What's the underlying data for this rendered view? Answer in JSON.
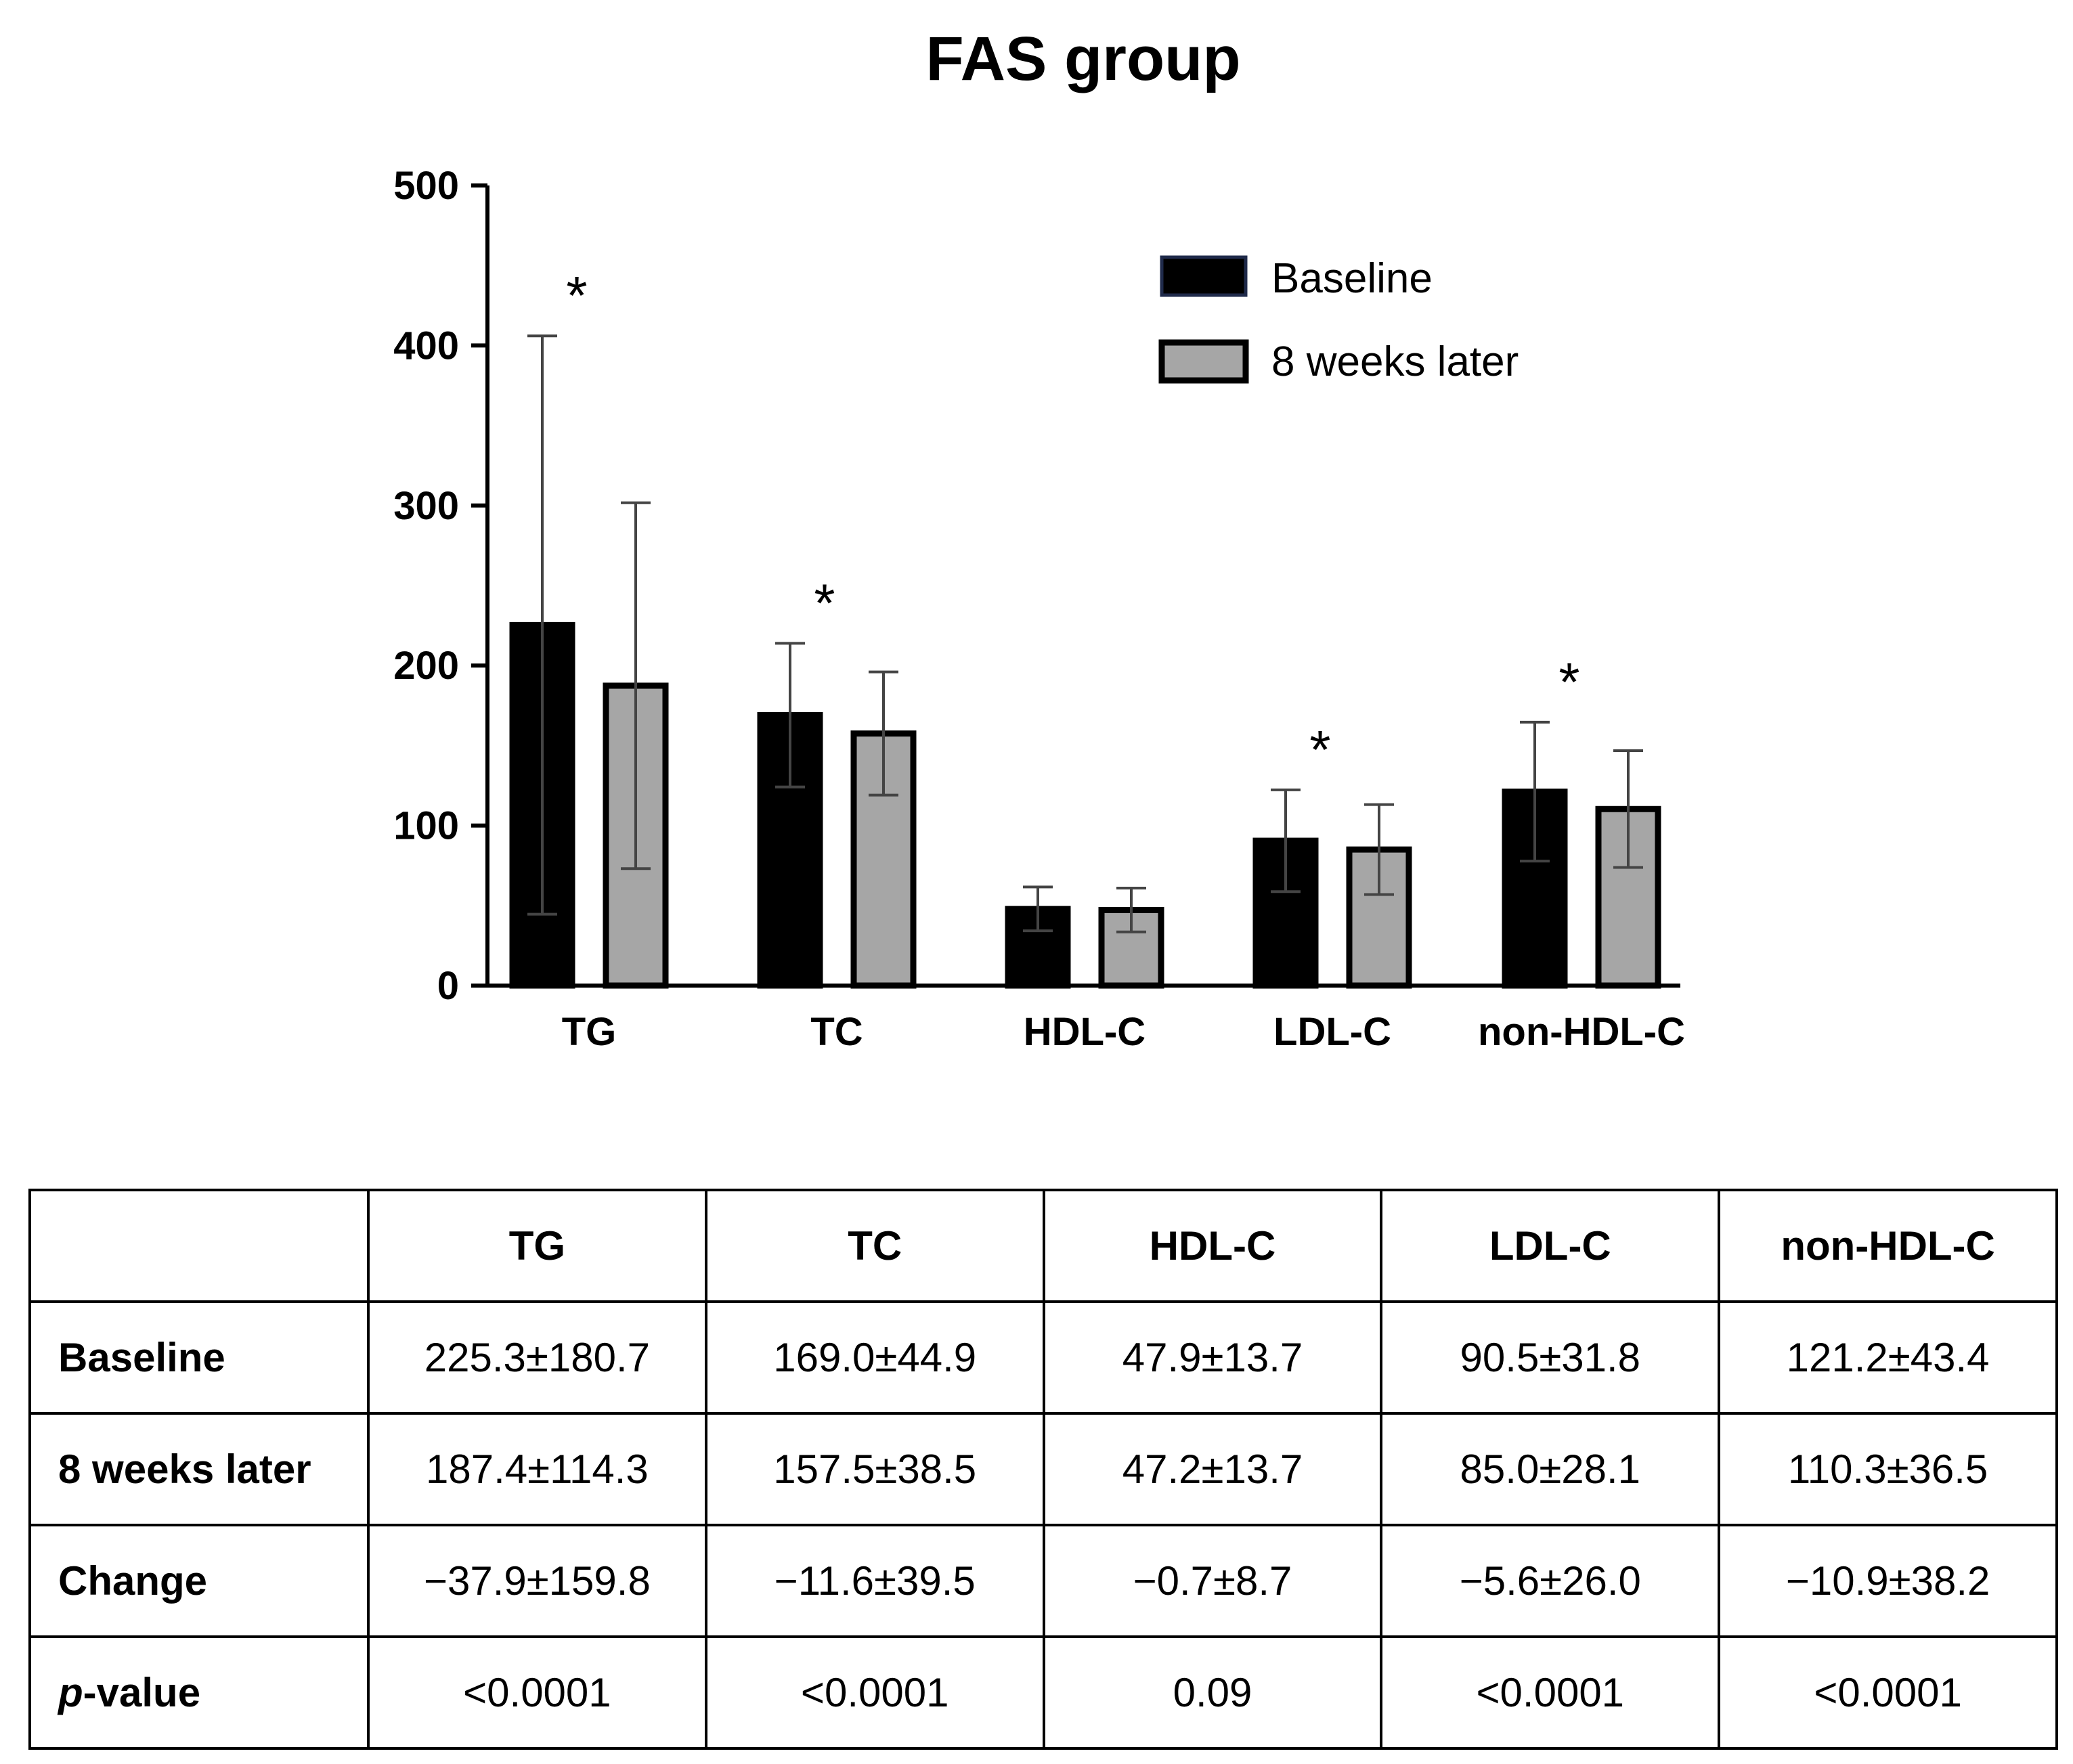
{
  "chart_data": {
    "type": "bar",
    "title": "FAS group",
    "categories": [
      "TG",
      "TC",
      "HDL-C",
      "LDL-C",
      "non-HDL-C"
    ],
    "series": [
      {
        "name": "Baseline",
        "color": "#000000",
        "values": [
          225.3,
          169.0,
          47.9,
          90.5,
          121.2
        ],
        "errors": [
          180.7,
          44.9,
          13.7,
          31.8,
          43.4
        ]
      },
      {
        "name": "8 weeks later",
        "color": "#a6a6a6",
        "values": [
          187.4,
          157.5,
          47.2,
          85.0,
          110.3
        ],
        "errors": [
          114.3,
          38.5,
          13.7,
          28.1,
          36.5
        ]
      }
    ],
    "significance": [
      "*",
      "*",
      "",
      "*",
      "*"
    ],
    "xlabel": "",
    "ylabel": "",
    "ylim": [
      0,
      500
    ],
    "yticks": [
      0,
      100,
      200,
      300,
      400,
      500
    ],
    "legend_position": "top-right",
    "grid": false
  },
  "table": {
    "headers": [
      "",
      "TG",
      "TC",
      "HDL-C",
      "LDL-C",
      "non-HDL-C"
    ],
    "rows": [
      {
        "label": "Baseline",
        "cells": [
          "225.3±180.7",
          "169.0±44.9",
          "47.9±13.7",
          "90.5±31.8",
          "121.2±43.4"
        ]
      },
      {
        "label": "8 weeks later",
        "cells": [
          "187.4±114.3",
          "157.5±38.5",
          "47.2±13.7",
          "85.0±28.1",
          "110.3±36.5"
        ]
      },
      {
        "label": "Change",
        "cells": [
          "−37.9±159.8",
          "−11.6±39.5",
          "−0.7±8.7",
          "−5.6±26.0",
          "−10.9±38.2"
        ]
      },
      {
        "label_italic": "p",
        "label_rest": "-value",
        "cells": [
          "<0.0001",
          "<0.0001",
          "0.09",
          "<0.0001",
          "<0.0001"
        ]
      }
    ]
  }
}
